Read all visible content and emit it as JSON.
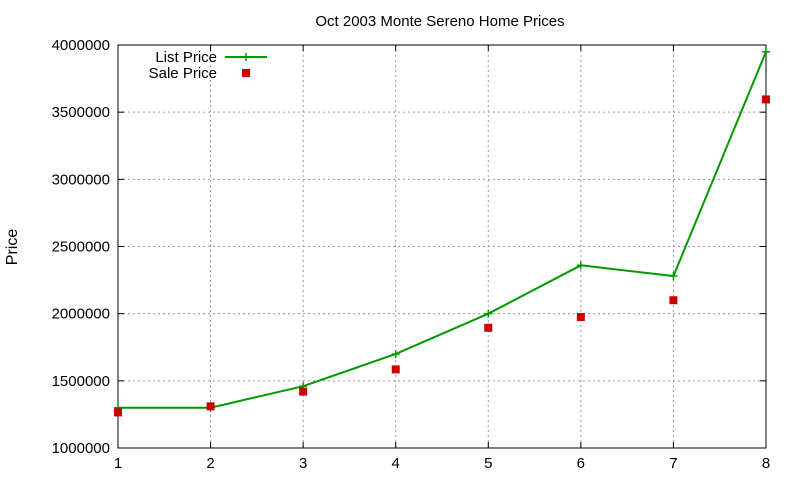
{
  "chart_data": {
    "type": "line",
    "title": "Oct 2003 Monte Sereno Home Prices",
    "xlabel": "",
    "ylabel": "Price",
    "x": [
      1,
      2,
      3,
      4,
      5,
      6,
      7,
      8
    ],
    "xlim": [
      1,
      8
    ],
    "ylim": [
      1000000,
      4000000
    ],
    "xticks": [
      "1",
      "2",
      "3",
      "4",
      "5",
      "6",
      "7",
      "8"
    ],
    "yticks": [
      "1000000",
      "1500000",
      "2000000",
      "2500000",
      "3000000",
      "3500000",
      "4000000"
    ],
    "grid": true,
    "legend_position": "top-left",
    "series": [
      {
        "name": "List Price",
        "style": "linespoints",
        "marker": "plus",
        "color": "#009900",
        "values": [
          1300000,
          1300000,
          1460000,
          1700000,
          2000000,
          2360000,
          2280000,
          3950000
        ]
      },
      {
        "name": "Sale Price",
        "style": "points",
        "marker": "square",
        "color": "#cc0000",
        "values": [
          1265000,
          1310000,
          1420000,
          1585000,
          1895000,
          1975000,
          2100000,
          3595000
        ]
      }
    ]
  }
}
